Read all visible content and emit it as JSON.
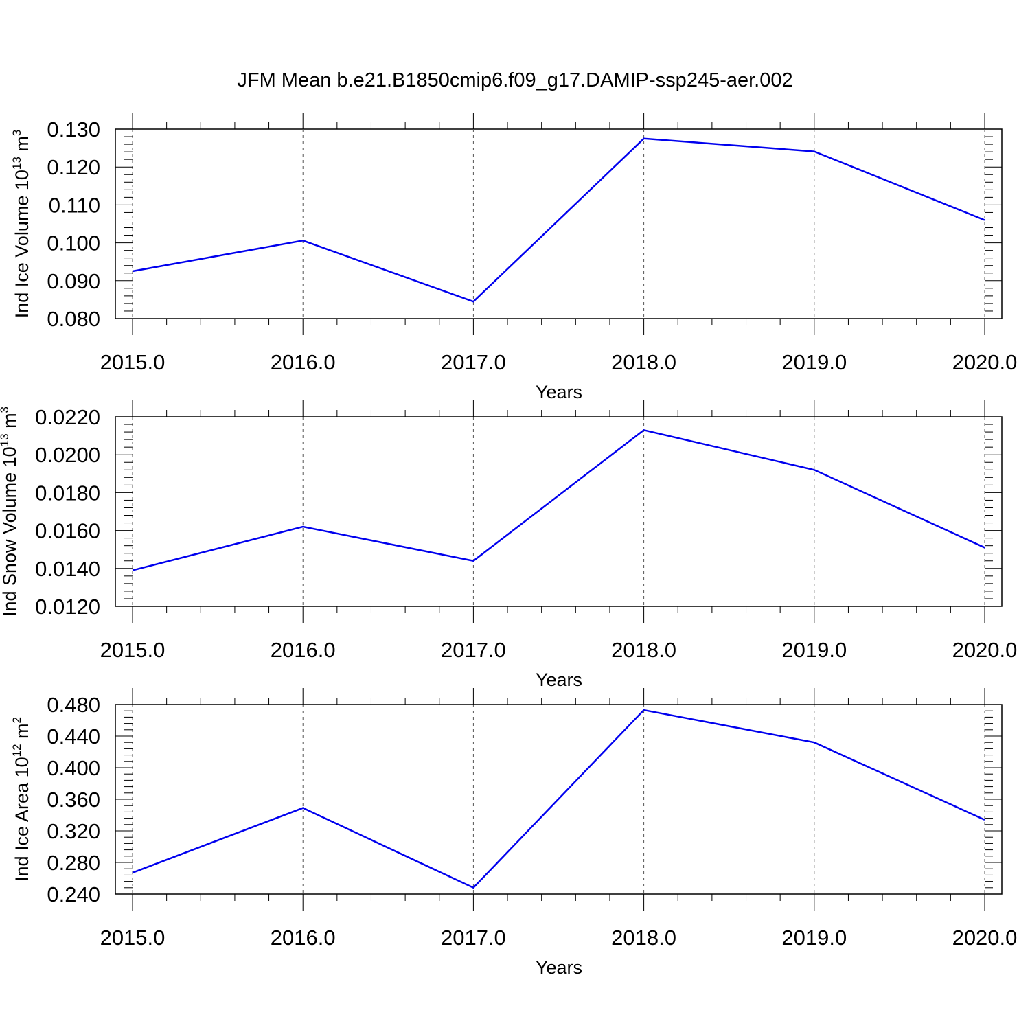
{
  "title": "JFM Mean b.e21.B1850cmip6.f09_g17.DAMIP-ssp245-aer.002",
  "colors": {
    "series": "#0000ee",
    "axis": "#000000",
    "grid": "#555555"
  },
  "chart_data": [
    {
      "type": "line",
      "xlabel": "Years",
      "ylabel": {
        "text": "Ind Ice Volume 10",
        "sup1": "13",
        "unit": " m",
        "sup2": "3"
      },
      "x": [
        2015,
        2016,
        2017,
        2018,
        2019,
        2020
      ],
      "xticks": [
        "2015.0",
        "2016.0",
        "2017.0",
        "2018.0",
        "2019.0",
        "2020.0"
      ],
      "xlim": [
        2015,
        2020
      ],
      "ylim": [
        0.08,
        0.13
      ],
      "yticks": [
        "0.080",
        "0.090",
        "0.100",
        "0.110",
        "0.120",
        "0.130"
      ],
      "ytick_values": [
        0.08,
        0.09,
        0.1,
        0.11,
        0.12,
        0.13
      ],
      "values": [
        0.0925,
        0.1006,
        0.0845,
        0.1275,
        0.1241,
        0.106
      ],
      "grid": "x-dashed"
    },
    {
      "type": "line",
      "xlabel": "Years",
      "ylabel": {
        "text": "Ind Snow Volume 10",
        "sup1": "13",
        "unit": " m",
        "sup2": "3"
      },
      "x": [
        2015,
        2016,
        2017,
        2018,
        2019,
        2020
      ],
      "xticks": [
        "2015.0",
        "2016.0",
        "2017.0",
        "2018.0",
        "2019.0",
        "2020.0"
      ],
      "xlim": [
        2015,
        2020
      ],
      "ylim": [
        0.012,
        0.022
      ],
      "yticks": [
        "0.0120",
        "0.0140",
        "0.0160",
        "0.0180",
        "0.0200",
        "0.0220"
      ],
      "ytick_values": [
        0.012,
        0.014,
        0.016,
        0.018,
        0.02,
        0.022
      ],
      "values": [
        0.0139,
        0.0162,
        0.0144,
        0.0213,
        0.0192,
        0.0151
      ],
      "grid": "x-dashed"
    },
    {
      "type": "line",
      "xlabel": "Years",
      "ylabel": {
        "text": "Ind Ice Area 10",
        "sup1": "12",
        "unit": " m",
        "sup2": "2"
      },
      "x": [
        2015,
        2016,
        2017,
        2018,
        2019,
        2020
      ],
      "xticks": [
        "2015.0",
        "2016.0",
        "2017.0",
        "2018.0",
        "2019.0",
        "2020.0"
      ],
      "xlim": [
        2015,
        2020
      ],
      "ylim": [
        0.24,
        0.48
      ],
      "yticks": [
        "0.240",
        "0.280",
        "0.320",
        "0.360",
        "0.400",
        "0.440",
        "0.480"
      ],
      "ytick_values": [
        0.24,
        0.28,
        0.32,
        0.36,
        0.4,
        0.44,
        0.48
      ],
      "values": [
        0.267,
        0.349,
        0.248,
        0.473,
        0.432,
        0.334
      ],
      "grid": "x-dashed"
    }
  ]
}
